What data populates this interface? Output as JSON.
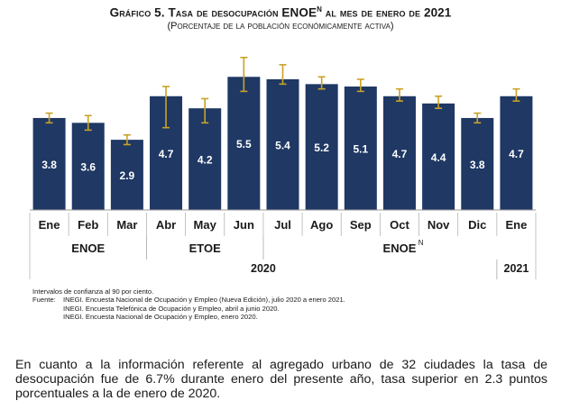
{
  "title": {
    "prefix": "Gráfico 5. Tasa de desocupación ENOE",
    "superscript": "N",
    "suffix": " al mes de enero de 2021"
  },
  "subtitle": "(Porcentaje de la población económicamente activa)",
  "chart_data": {
    "type": "bar",
    "categories": [
      "Ene",
      "Feb",
      "Mar",
      "Abr",
      "May",
      "Jun",
      "Jul",
      "Ago",
      "Sep",
      "Oct",
      "Nov",
      "Dic",
      "Ene"
    ],
    "values": [
      3.8,
      3.6,
      2.9,
      4.7,
      4.2,
      5.5,
      5.4,
      5.2,
      5.1,
      4.7,
      4.4,
      3.8,
      4.7
    ],
    "error_low": [
      3.6,
      3.3,
      2.7,
      3.4,
      3.6,
      4.9,
      5.2,
      5.0,
      4.9,
      4.5,
      4.2,
      3.6,
      4.5
    ],
    "error_high": [
      4.0,
      3.9,
      3.1,
      5.1,
      4.6,
      6.3,
      6.0,
      5.5,
      5.4,
      5.0,
      4.7,
      4.0,
      5.0
    ],
    "data_labels": [
      "3.8",
      "3.6",
      "2.9",
      "4.7",
      "4.2",
      "5.5",
      "5.4",
      "5.2",
      "5.1",
      "4.7",
      "4.4",
      "3.8",
      "4.7"
    ],
    "ylim": [
      0,
      7
    ],
    "grid": false,
    "bar_color": "#1f3864",
    "error_bar_color": "#c9a227",
    "survey_groups": [
      {
        "label": "ENOE",
        "superscript": "",
        "start": 0,
        "end": 2
      },
      {
        "label": "ETOE",
        "superscript": "",
        "start": 3,
        "end": 5
      },
      {
        "label": "ENOE",
        "superscript": "N",
        "start": 6,
        "end": 12
      }
    ],
    "year_groups": [
      {
        "label": "2020",
        "start": 0,
        "end": 11
      },
      {
        "label": "2021",
        "start": 12,
        "end": 12
      }
    ]
  },
  "notes": {
    "intro": "Intervalos de confianza al 90 por ciento.",
    "fuente_label": "Fuente:",
    "sources": [
      "INEGI. Encuesta Nacional de Ocupación y Empleo (Nueva Edición), julio 2020 a enero 2021.",
      "INEGI. Encuesta Telefónica de Ocupación y Empleo, abril a junio 2020.",
      "INEGI. Encuesta Nacional de Ocupación y Empleo, enero 2020."
    ]
  },
  "paragraph": "En cuanto a la información referente al agregado urbano de 32 ciudades la tasa de desocupación fue de 6.7% durante enero del presente año, tasa superior en 2.3 puntos porcentuales a la de enero de 2020."
}
